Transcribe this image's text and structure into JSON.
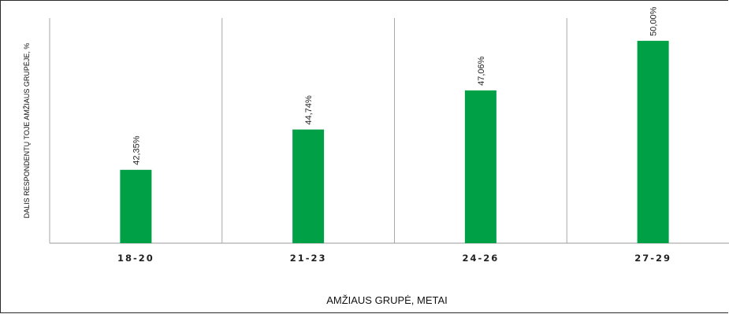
{
  "chart_data": {
    "type": "bar",
    "categories": [
      "18-20",
      "21-23",
      "24-26",
      "27-29"
    ],
    "values": [
      42.35,
      44.74,
      47.06,
      50.0
    ],
    "value_labels": [
      "42,35%",
      "44,74%",
      "47,06%",
      "50,00%"
    ],
    "xlabel": "AMŽIAUS GRUPĖ, METAI",
    "ylabel": "DALIS RESPONDENTŲ TOJE AMŽIAUS GRUPĖJE, %",
    "ylim": [
      38,
      52
    ],
    "grid": "vertical-category-separators",
    "legend": "none",
    "bar_color": "#00a046"
  }
}
